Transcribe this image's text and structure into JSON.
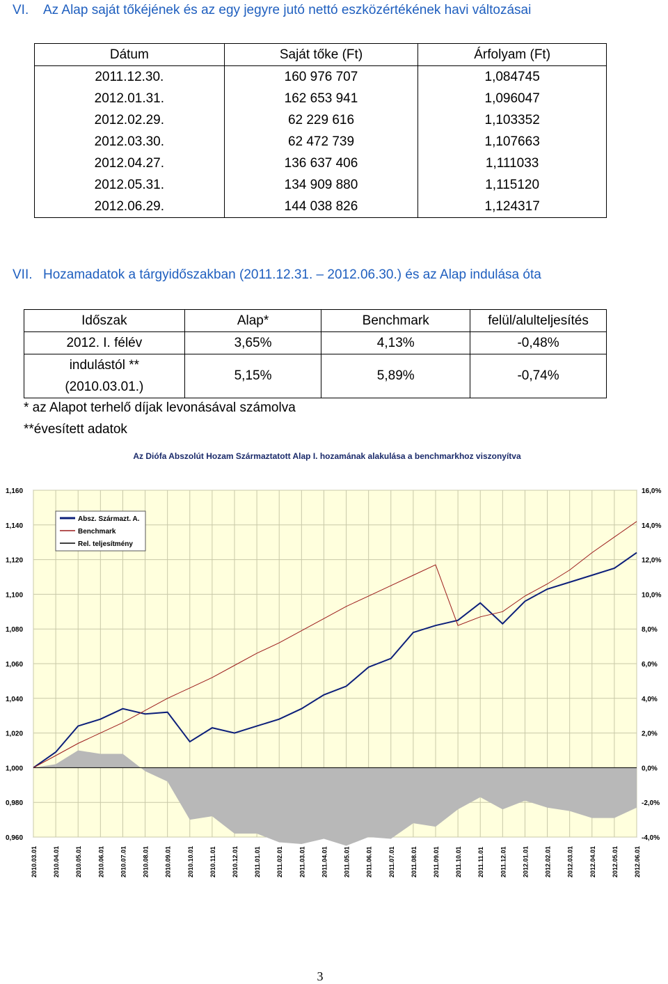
{
  "section6": {
    "number": "VI.",
    "title": "Az Alap saját tőkéjének és az egy jegyre jutó nettó eszközértékének havi változásai",
    "columns": [
      "Dátum",
      "Saját tőke (Ft)",
      "Árfolyam (Ft)"
    ],
    "rows": [
      [
        "2011.12.30.",
        "160 976 707",
        "1,084745"
      ],
      [
        "2012.01.31.",
        "162 653 941",
        "1,096047"
      ],
      [
        "2012.02.29.",
        "62 229 616",
        "1,103352"
      ],
      [
        "2012.03.30.",
        "62 472 739",
        "1,107663"
      ],
      [
        "2012.04.27.",
        "136 637 406",
        "1,111033"
      ],
      [
        "2012.05.31.",
        "134 909 880",
        "1,115120"
      ],
      [
        "2012.06.29.",
        "144 038 826",
        "1,124317"
      ]
    ]
  },
  "section7": {
    "number": "VII.",
    "title": "Hozamadatok a tárgyidőszakban (2011.12.31. – 2012.06.30.) és az Alap indulása óta",
    "columns": [
      "Időszak",
      "Alap*",
      "Benchmark",
      "felül/alulteljesítés"
    ],
    "rows": [
      {
        "period_line1": "2012. I. félév",
        "period_line2": "",
        "alap": "3,65%",
        "benchmark": "4,13%",
        "diff": "-0,48%"
      },
      {
        "period_line1": "indulástól **",
        "period_line2": "(2010.03.01.)",
        "alap": "5,15%",
        "benchmark": "5,89%",
        "diff": "-0,74%"
      }
    ],
    "note1": "* az Alapot terhelő díjak levonásával számolva",
    "note2": "**évesített adatok"
  },
  "chart_data": {
    "type": "line",
    "title": "Az Diófa Abszolút Hozam Származtatott Alap I. hozamának alakulása a benchmarkhoz viszonyítva",
    "x": [
      "2010.03.01",
      "2010.04.01",
      "2010.05.01",
      "2010.06.01",
      "2010.07.01",
      "2010.08.01",
      "2010.09.01",
      "2010.10.01",
      "2010.11.01",
      "2010.12.01",
      "2011.01.01",
      "2011.02.01",
      "2011.03.01",
      "2011.04.01",
      "2011.05.01",
      "2011.06.01",
      "2011.07.01",
      "2011.08.01",
      "2011.09.01",
      "2011.10.01",
      "2011.11.01",
      "2011.12.01",
      "2012.01.01",
      "2012.02.01",
      "2012.03.01",
      "2012.04.01",
      "2012.05.01",
      "2012.06.01"
    ],
    "y_left": {
      "ticks": [
        "1,160",
        "1,140",
        "1,120",
        "1,100",
        "1,080",
        "1,060",
        "1,040",
        "1,020",
        "1,000",
        "0,980",
        "0,960"
      ],
      "range": [
        0.96,
        1.16
      ]
    },
    "y_right": {
      "ticks": [
        "16,0%",
        "14,0%",
        "12,0%",
        "10,0%",
        "8,0%",
        "6,0%",
        "4,0%",
        "2,0%",
        "0,0%",
        "-2,0%",
        "-4,0%"
      ],
      "range": [
        -4.0,
        16.0
      ]
    },
    "grid": true,
    "legend_position": "top-left",
    "series": [
      {
        "name": "Absz. Származt. A.",
        "color": "#0c1f7a",
        "axis": "left",
        "style": "line",
        "values": [
          1.0,
          1.009,
          1.024,
          1.028,
          1.034,
          1.031,
          1.032,
          1.015,
          1.023,
          1.02,
          1.024,
          1.028,
          1.034,
          1.042,
          1.047,
          1.058,
          1.063,
          1.078,
          1.082,
          1.085,
          1.095,
          1.083,
          1.096,
          1.103,
          1.107,
          1.111,
          1.115,
          1.124
        ]
      },
      {
        "name": "Benchmark",
        "color": "#9b1b1b",
        "axis": "left",
        "style": "line",
        "values": [
          1.0,
          1.007,
          1.014,
          1.02,
          1.026,
          1.033,
          1.04,
          1.046,
          1.052,
          1.059,
          1.066,
          1.072,
          1.079,
          1.086,
          1.093,
          1.099,
          1.105,
          1.111,
          1.117,
          1.082,
          1.087,
          1.09,
          1.099,
          1.106,
          1.114,
          1.124,
          1.133,
          1.142
        ]
      },
      {
        "name": "Rel. teljesítmény",
        "color": "#b8b8b8",
        "axis": "right",
        "style": "area",
        "values": [
          0.0,
          0.2,
          1.0,
          0.8,
          0.8,
          -0.2,
          -0.8,
          -3.0,
          -2.8,
          -3.8,
          -3.8,
          -4.3,
          -4.4,
          -4.1,
          -4.5,
          -4.0,
          -4.1,
          -3.2,
          -3.4,
          -2.4,
          -1.7,
          -2.4,
          -1.9,
          -2.3,
          -2.5,
          -2.9,
          -2.9,
          -2.3
        ]
      }
    ]
  },
  "page": {
    "number": "3"
  }
}
